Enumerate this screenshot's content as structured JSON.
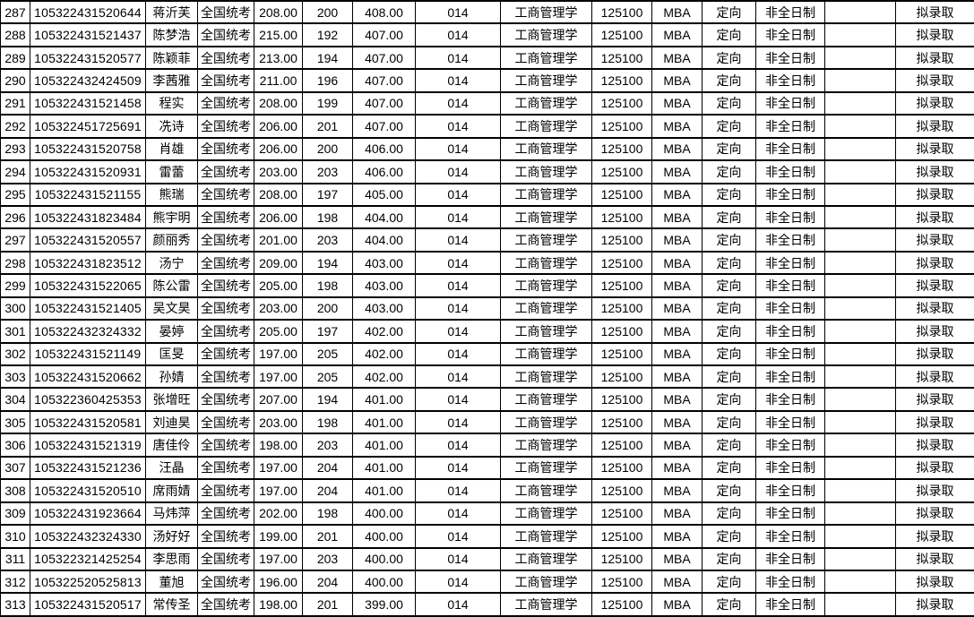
{
  "document": {
    "kind": "admission-list-table",
    "status_label": "拟录取",
    "text_color": "#000000",
    "border_color": "#000000",
    "background_color": "#ffffff"
  },
  "table": {
    "column_keys": [
      "row-no",
      "candidate-id",
      "name",
      "exam-type",
      "score-1",
      "score-2",
      "total-score",
      "dept-code",
      "major-name",
      "major-code",
      "program",
      "orientation",
      "study-mode",
      "remark",
      "admission-status"
    ],
    "rows": [
      [
        "287",
        "105322431520644",
        "蒋沂芙",
        "全国统考",
        "208.00",
        "200",
        "408.00",
        "014",
        "工商管理学",
        "125100",
        "MBA",
        "定向",
        "非全日制",
        "",
        "拟录取"
      ],
      [
        "288",
        "105322431521437",
        "陈梦浩",
        "全国统考",
        "215.00",
        "192",
        "407.00",
        "014",
        "工商管理学",
        "125100",
        "MBA",
        "定向",
        "非全日制",
        "",
        "拟录取"
      ],
      [
        "289",
        "105322431520577",
        "陈颖菲",
        "全国统考",
        "213.00",
        "194",
        "407.00",
        "014",
        "工商管理学",
        "125100",
        "MBA",
        "定向",
        "非全日制",
        "",
        "拟录取"
      ],
      [
        "290",
        "105322432424509",
        "李茜雅",
        "全国统考",
        "211.00",
        "196",
        "407.00",
        "014",
        "工商管理学",
        "125100",
        "MBA",
        "定向",
        "非全日制",
        "",
        "拟录取"
      ],
      [
        "291",
        "105322431521458",
        "程实",
        "全国统考",
        "208.00",
        "199",
        "407.00",
        "014",
        "工商管理学",
        "125100",
        "MBA",
        "定向",
        "非全日制",
        "",
        "拟录取"
      ],
      [
        "292",
        "105322451725691",
        "冼诗",
        "全国统考",
        "206.00",
        "201",
        "407.00",
        "014",
        "工商管理学",
        "125100",
        "MBA",
        "定向",
        "非全日制",
        "",
        "拟录取"
      ],
      [
        "293",
        "105322431520758",
        "肖雄",
        "全国统考",
        "206.00",
        "200",
        "406.00",
        "014",
        "工商管理学",
        "125100",
        "MBA",
        "定向",
        "非全日制",
        "",
        "拟录取"
      ],
      [
        "294",
        "105322431520931",
        "雷蕾",
        "全国统考",
        "203.00",
        "203",
        "406.00",
        "014",
        "工商管理学",
        "125100",
        "MBA",
        "定向",
        "非全日制",
        "",
        "拟录取"
      ],
      [
        "295",
        "105322431521155",
        "熊瑞",
        "全国统考",
        "208.00",
        "197",
        "405.00",
        "014",
        "工商管理学",
        "125100",
        "MBA",
        "定向",
        "非全日制",
        "",
        "拟录取"
      ],
      [
        "296",
        "105322431823484",
        "熊宇明",
        "全国统考",
        "206.00",
        "198",
        "404.00",
        "014",
        "工商管理学",
        "125100",
        "MBA",
        "定向",
        "非全日制",
        "",
        "拟录取"
      ],
      [
        "297",
        "105322431520557",
        "颜丽秀",
        "全国统考",
        "201.00",
        "203",
        "404.00",
        "014",
        "工商管理学",
        "125100",
        "MBA",
        "定向",
        "非全日制",
        "",
        "拟录取"
      ],
      [
        "298",
        "105322431823512",
        "汤宁",
        "全国统考",
        "209.00",
        "194",
        "403.00",
        "014",
        "工商管理学",
        "125100",
        "MBA",
        "定向",
        "非全日制",
        "",
        "拟录取"
      ],
      [
        "299",
        "105322431522065",
        "陈公雷",
        "全国统考",
        "205.00",
        "198",
        "403.00",
        "014",
        "工商管理学",
        "125100",
        "MBA",
        "定向",
        "非全日制",
        "",
        "拟录取"
      ],
      [
        "300",
        "105322431521405",
        "吴文昊",
        "全国统考",
        "203.00",
        "200",
        "403.00",
        "014",
        "工商管理学",
        "125100",
        "MBA",
        "定向",
        "非全日制",
        "",
        "拟录取"
      ],
      [
        "301",
        "105322432324332",
        "晏婷",
        "全国统考",
        "205.00",
        "197",
        "402.00",
        "014",
        "工商管理学",
        "125100",
        "MBA",
        "定向",
        "非全日制",
        "",
        "拟录取"
      ],
      [
        "302",
        "105322431521149",
        "匡旻",
        "全国统考",
        "197.00",
        "205",
        "402.00",
        "014",
        "工商管理学",
        "125100",
        "MBA",
        "定向",
        "非全日制",
        "",
        "拟录取"
      ],
      [
        "303",
        "105322431520662",
        "孙婧",
        "全国统考",
        "197.00",
        "205",
        "402.00",
        "014",
        "工商管理学",
        "125100",
        "MBA",
        "定向",
        "非全日制",
        "",
        "拟录取"
      ],
      [
        "304",
        "105322360425353",
        "张增旺",
        "全国统考",
        "207.00",
        "194",
        "401.00",
        "014",
        "工商管理学",
        "125100",
        "MBA",
        "定向",
        "非全日制",
        "",
        "拟录取"
      ],
      [
        "305",
        "105322431520581",
        "刘迪昊",
        "全国统考",
        "203.00",
        "198",
        "401.00",
        "014",
        "工商管理学",
        "125100",
        "MBA",
        "定向",
        "非全日制",
        "",
        "拟录取"
      ],
      [
        "306",
        "105322431521319",
        "唐佳伶",
        "全国统考",
        "198.00",
        "203",
        "401.00",
        "014",
        "工商管理学",
        "125100",
        "MBA",
        "定向",
        "非全日制",
        "",
        "拟录取"
      ],
      [
        "307",
        "105322431521236",
        "汪晶",
        "全国统考",
        "197.00",
        "204",
        "401.00",
        "014",
        "工商管理学",
        "125100",
        "MBA",
        "定向",
        "非全日制",
        "",
        "拟录取"
      ],
      [
        "308",
        "105322431520510",
        "席雨婧",
        "全国统考",
        "197.00",
        "204",
        "401.00",
        "014",
        "工商管理学",
        "125100",
        "MBA",
        "定向",
        "非全日制",
        "",
        "拟录取"
      ],
      [
        "309",
        "105322431923664",
        "马炜萍",
        "全国统考",
        "202.00",
        "198",
        "400.00",
        "014",
        "工商管理学",
        "125100",
        "MBA",
        "定向",
        "非全日制",
        "",
        "拟录取"
      ],
      [
        "310",
        "105322432324330",
        "汤好好",
        "全国统考",
        "199.00",
        "201",
        "400.00",
        "014",
        "工商管理学",
        "125100",
        "MBA",
        "定向",
        "非全日制",
        "",
        "拟录取"
      ],
      [
        "311",
        "105322321425254",
        "李思雨",
        "全国统考",
        "197.00",
        "203",
        "400.00",
        "014",
        "工商管理学",
        "125100",
        "MBA",
        "定向",
        "非全日制",
        "",
        "拟录取"
      ],
      [
        "312",
        "105322520525813",
        "董旭",
        "全国统考",
        "196.00",
        "204",
        "400.00",
        "014",
        "工商管理学",
        "125100",
        "MBA",
        "定向",
        "非全日制",
        "",
        "拟录取"
      ],
      [
        "313",
        "105322431520517",
        "常传圣",
        "全国统考",
        "198.00",
        "201",
        "399.00",
        "014",
        "工商管理学",
        "125100",
        "MBA",
        "定向",
        "非全日制",
        "",
        "拟录取"
      ]
    ]
  }
}
